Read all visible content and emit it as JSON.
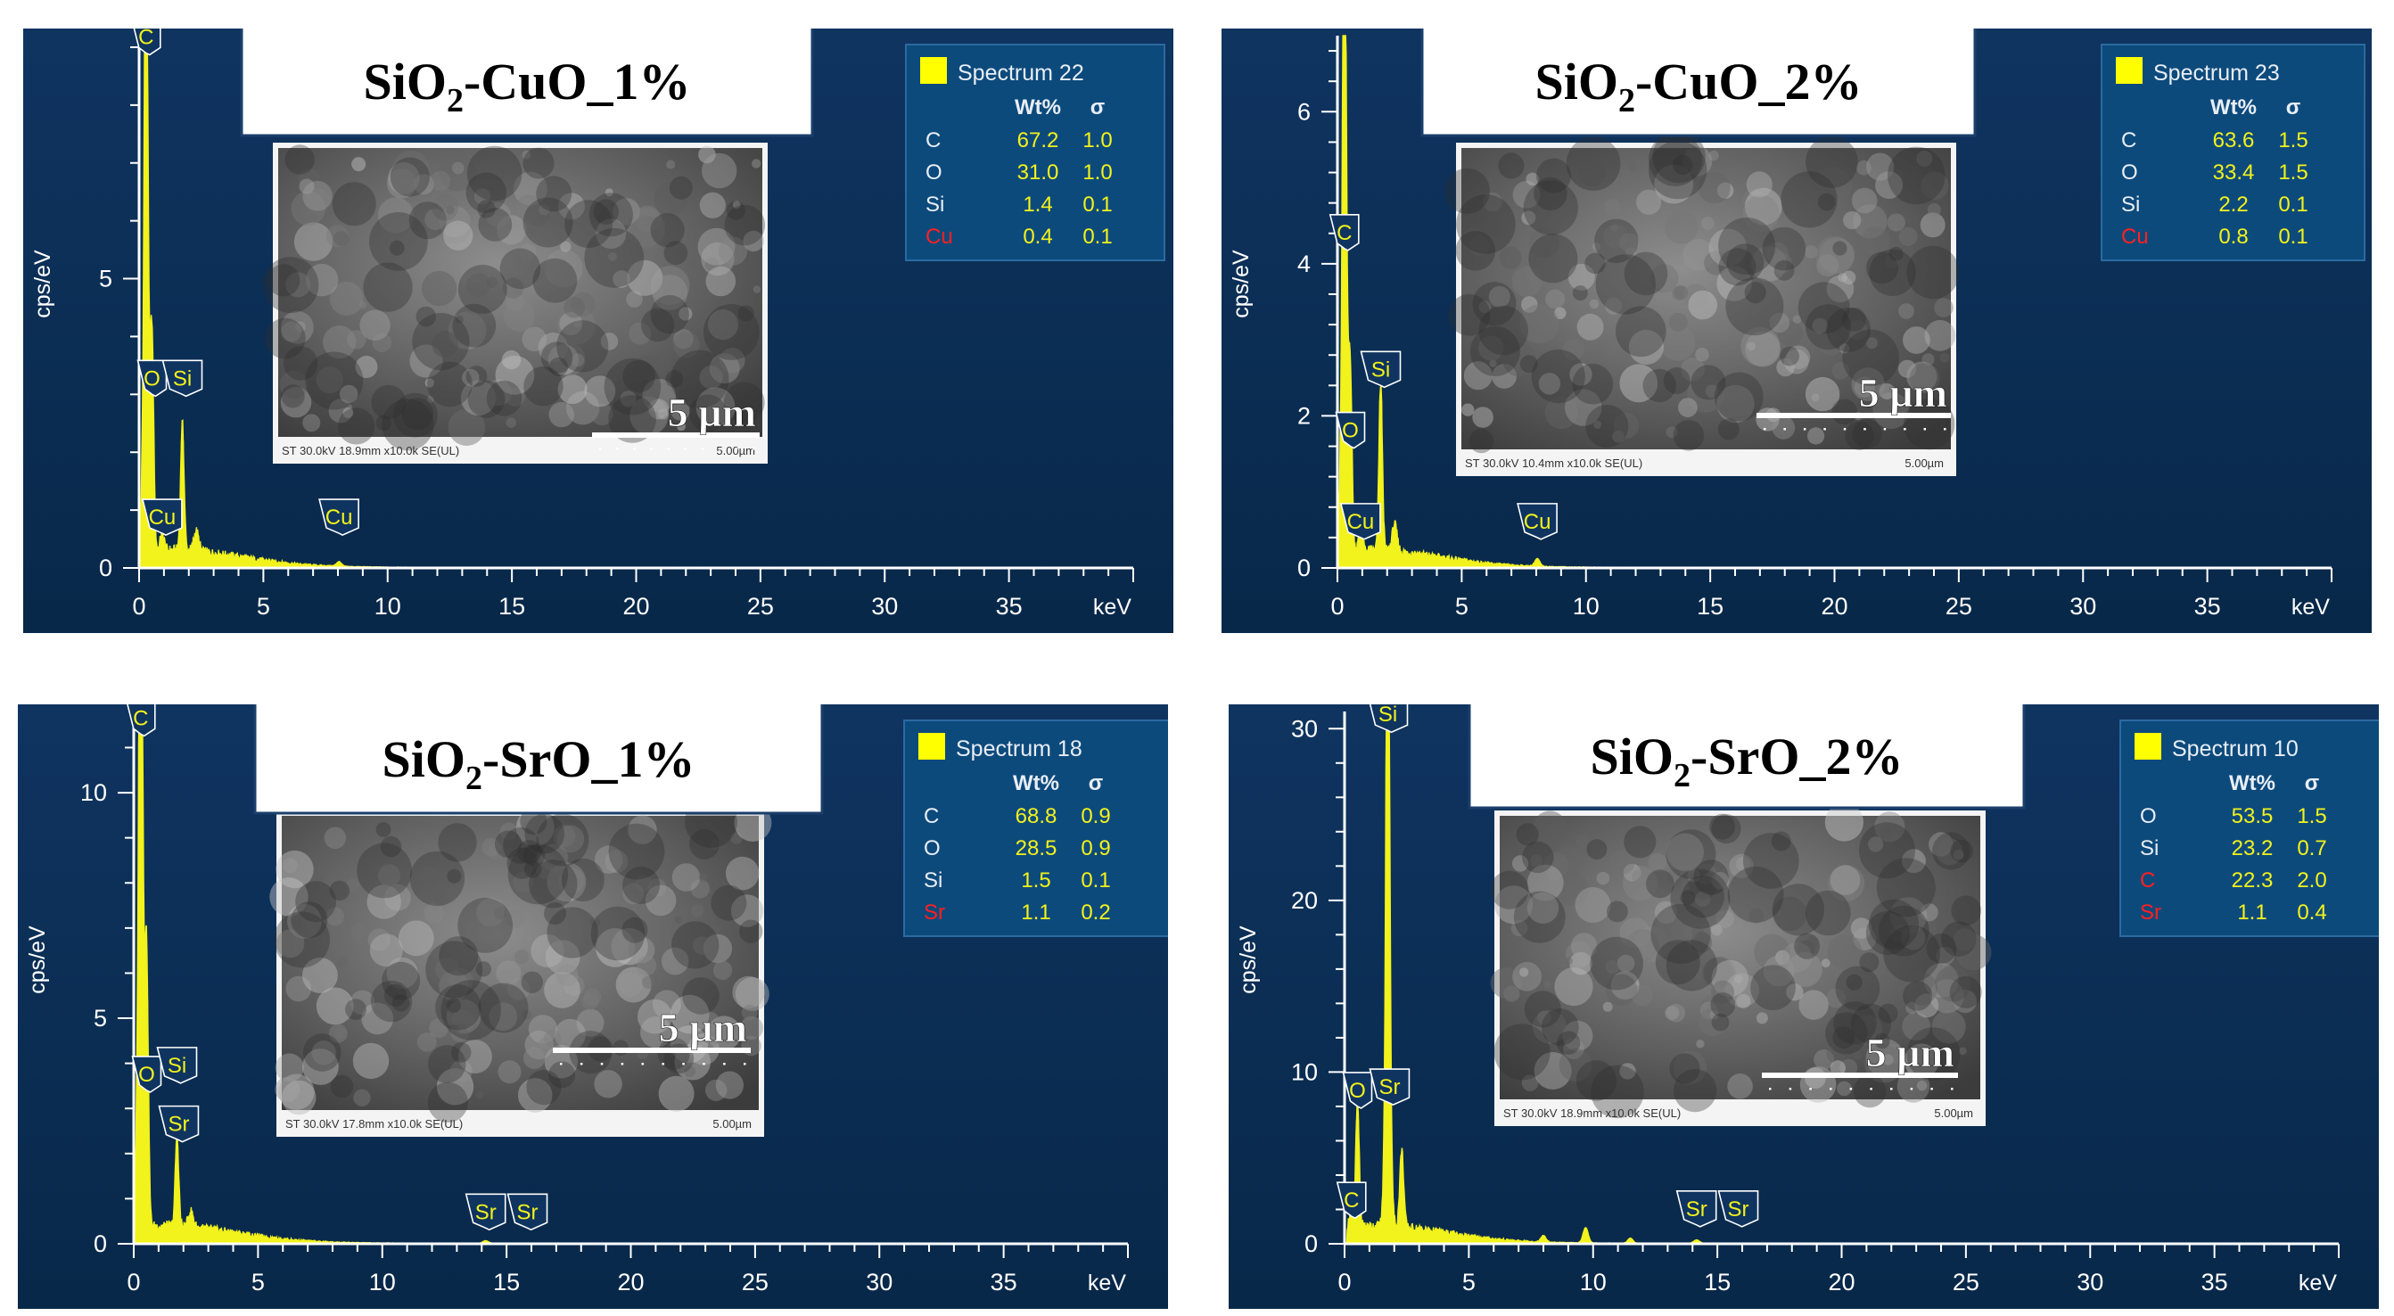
{
  "page_bg": "#ffffff",
  "colors": {
    "plot_bg_top": "#0f3460",
    "plot_bg_bottom": "#082849",
    "axis": "#ffffff",
    "spectrum": "#f2f21c",
    "marker_text": "#f2f21c",
    "legend_bg": "#0d4a7c",
    "legend_value": "#f2f21c",
    "legend_element_alt": "#ff2020",
    "legend_swatch": "#ffff00",
    "title_box_bg": "#ffffff",
    "title_box_border": "#1b3f6b"
  },
  "chart_data": [
    {
      "type": "line",
      "title": "SiO2-CuO_1%",
      "title_main": "SiO",
      "title_sub": "2",
      "title_rest": "-CuO_1%",
      "xlabel": "keV",
      "ylabel": "cps/eV",
      "xlim": [
        0,
        40
      ],
      "ylim": [
        0,
        9.2
      ],
      "xticks": [
        0,
        5,
        10,
        15,
        20,
        25,
        30,
        35
      ],
      "yticks": [
        0,
        5
      ],
      "grid": false,
      "legend": {
        "spectrum": "Spectrum 22",
        "col_wt": "Wt%",
        "col_sigma": "σ",
        "rows": [
          {
            "element": "C",
            "wt": "67.2",
            "sigma": "1.0",
            "alt": false
          },
          {
            "element": "O",
            "wt": "31.0",
            "sigma": "1.0",
            "alt": false
          },
          {
            "element": "Si",
            "wt": "1.4",
            "sigma": "0.1",
            "alt": false
          },
          {
            "element": "Cu",
            "wt": "0.4",
            "sigma": "0.1",
            "alt": true
          }
        ]
      },
      "markers": [
        {
          "label": "C",
          "x": 0.28,
          "y": 8.9
        },
        {
          "label": "O",
          "x": 0.52,
          "y": 3.0
        },
        {
          "label": "Si",
          "x": 1.74,
          "y": 3.0
        },
        {
          "label": "Cu",
          "x": 0.93,
          "y": 0.6
        },
        {
          "label": "Cu",
          "x": 8.04,
          "y": 0.6
        }
      ],
      "peaks": [
        {
          "x": 0.28,
          "y": 8.9,
          "w": 0.06
        },
        {
          "x": 0.28,
          "y": 4.2,
          "w": 0.12
        },
        {
          "x": 0.52,
          "y": 3.4,
          "w": 0.07
        },
        {
          "x": 0.93,
          "y": 0.3,
          "w": 0.08
        },
        {
          "x": 1.74,
          "y": 2.2,
          "w": 0.07
        },
        {
          "x": 2.3,
          "y": 0.35,
          "w": 0.1
        },
        {
          "x": 8.04,
          "y": 0.08,
          "w": 0.1
        }
      ],
      "inset": {
        "scale_label": "5 µm",
        "caption": "ST 30.0kV 18.9mm x10.0k SE(UL)",
        "caption_scale": "5.00µm"
      }
    },
    {
      "type": "line",
      "title": "SiO2-CuO_2%",
      "title_main": "SiO",
      "title_sub": "2",
      "title_rest": "-CuO_2%",
      "xlabel": "keV",
      "ylabel": "cps/eV",
      "xlim": [
        0,
        40
      ],
      "ylim": [
        0,
        7.0
      ],
      "xticks": [
        0,
        5,
        10,
        15,
        20,
        25,
        30,
        35
      ],
      "yticks": [
        0,
        2,
        4,
        6
      ],
      "grid": false,
      "legend": {
        "spectrum": "Spectrum 23",
        "col_wt": "Wt%",
        "col_sigma": "σ",
        "rows": [
          {
            "element": "C",
            "wt": "63.6",
            "sigma": "1.5",
            "alt": false
          },
          {
            "element": "O",
            "wt": "33.4",
            "sigma": "1.5",
            "alt": false
          },
          {
            "element": "Si",
            "wt": "2.2",
            "sigma": "0.1",
            "alt": false
          },
          {
            "element": "Cu",
            "wt": "0.8",
            "sigma": "0.1",
            "alt": true
          }
        ]
      },
      "markers": [
        {
          "label": "C",
          "x": 0.28,
          "y": 4.2
        },
        {
          "label": "O",
          "x": 0.52,
          "y": 1.6
        },
        {
          "label": "Si",
          "x": 1.74,
          "y": 2.4
        },
        {
          "label": "Cu",
          "x": 0.93,
          "y": 0.4
        },
        {
          "label": "Cu",
          "x": 8.04,
          "y": 0.4
        }
      ],
      "peaks": [
        {
          "x": 0.28,
          "y": 7.0,
          "w": 0.06
        },
        {
          "x": 0.28,
          "y": 3.7,
          "w": 0.12
        },
        {
          "x": 0.52,
          "y": 2.1,
          "w": 0.07
        },
        {
          "x": 0.93,
          "y": 0.25,
          "w": 0.08
        },
        {
          "x": 1.74,
          "y": 2.2,
          "w": 0.07
        },
        {
          "x": 2.3,
          "y": 0.35,
          "w": 0.1
        },
        {
          "x": 8.04,
          "y": 0.1,
          "w": 0.1
        }
      ],
      "inset": {
        "scale_label": "5 µm",
        "caption": "ST 30.0kV 10.4mm x10.0k SE(UL)",
        "caption_scale": "5.00µm"
      }
    },
    {
      "type": "line",
      "title": "SiO2-SrO_1%",
      "title_main": "SiO",
      "title_sub": "2",
      "title_rest": "-SrO_1%",
      "xlabel": "keV",
      "ylabel": "cps/eV",
      "xlim": [
        0,
        40
      ],
      "ylim": [
        0,
        11.8
      ],
      "xticks": [
        0,
        5,
        10,
        15,
        20,
        25,
        30,
        35
      ],
      "yticks": [
        0,
        5,
        10
      ],
      "grid": false,
      "legend": {
        "spectrum": "Spectrum 18",
        "col_wt": "Wt%",
        "col_sigma": "σ",
        "rows": [
          {
            "element": "C",
            "wt": "68.8",
            "sigma": "0.9",
            "alt": false
          },
          {
            "element": "O",
            "wt": "28.5",
            "sigma": "0.9",
            "alt": false
          },
          {
            "element": "Si",
            "wt": "1.5",
            "sigma": "0.1",
            "alt": false
          },
          {
            "element": "Sr",
            "wt": "1.1",
            "sigma": "0.2",
            "alt": true
          }
        ]
      },
      "markers": [
        {
          "label": "C",
          "x": 0.28,
          "y": 11.3
        },
        {
          "label": "O",
          "x": 0.52,
          "y": 3.4
        },
        {
          "label": "Si",
          "x": 1.74,
          "y": 3.6
        },
        {
          "label": "Sr",
          "x": 1.81,
          "y": 2.3
        },
        {
          "label": "Sr",
          "x": 14.16,
          "y": 0.35
        },
        {
          "label": "Sr",
          "x": 15.84,
          "y": 0.35
        }
      ],
      "peaks": [
        {
          "x": 0.28,
          "y": 11.4,
          "w": 0.06
        },
        {
          "x": 0.28,
          "y": 7.8,
          "w": 0.12
        },
        {
          "x": 0.52,
          "y": 5.4,
          "w": 0.07
        },
        {
          "x": 1.74,
          "y": 2.0,
          "w": 0.07
        },
        {
          "x": 2.3,
          "y": 0.35,
          "w": 0.1
        },
        {
          "x": 14.16,
          "y": 0.06,
          "w": 0.12
        }
      ],
      "inset": {
        "scale_label": "5 µm",
        "caption": "ST 30.0kV 17.8mm x10.0k SE(UL)",
        "caption_scale": "5.00µm"
      }
    },
    {
      "type": "line",
      "title": "SiO2-SrO_2%",
      "title_main": "SiO",
      "title_sub": "2",
      "title_rest": "-SrO_2%",
      "xlabel": "keV",
      "ylabel": "cps/eV",
      "xlim": [
        0,
        40
      ],
      "ylim": [
        0,
        31
      ],
      "xticks": [
        0,
        5,
        10,
        15,
        20,
        25,
        30,
        35
      ],
      "yticks": [
        0,
        10,
        20,
        30
      ],
      "grid": false,
      "legend": {
        "spectrum": "Spectrum 10",
        "col_wt": "Wt%",
        "col_sigma": "σ",
        "rows": [
          {
            "element": "O",
            "wt": "53.5",
            "sigma": "1.5",
            "alt": false
          },
          {
            "element": "Si",
            "wt": "23.2",
            "sigma": "0.7",
            "alt": false
          },
          {
            "element": "C",
            "wt": "22.3",
            "sigma": "2.0",
            "alt": true
          },
          {
            "element": "Sr",
            "wt": "1.1",
            "sigma": "0.4",
            "alt": true
          }
        ]
      },
      "markers": [
        {
          "label": "Si",
          "x": 1.74,
          "y": 29.9
        },
        {
          "label": "O",
          "x": 0.52,
          "y": 8.0
        },
        {
          "label": "Sr",
          "x": 1.81,
          "y": 8.2
        },
        {
          "label": "C",
          "x": 0.28,
          "y": 1.6
        },
        {
          "label": "Sr",
          "x": 14.16,
          "y": 1.1
        },
        {
          "label": "Sr",
          "x": 15.84,
          "y": 1.1
        }
      ],
      "peaks": [
        {
          "x": 1.74,
          "y": 30.5,
          "w": 0.06
        },
        {
          "x": 1.74,
          "y": 17.0,
          "w": 0.1
        },
        {
          "x": 0.52,
          "y": 7.2,
          "w": 0.07
        },
        {
          "x": 0.28,
          "y": 1.2,
          "w": 0.07
        },
        {
          "x": 2.3,
          "y": 4.5,
          "w": 0.08
        },
        {
          "x": 8.0,
          "y": 0.4,
          "w": 0.1
        },
        {
          "x": 9.7,
          "y": 0.9,
          "w": 0.1
        },
        {
          "x": 11.5,
          "y": 0.3,
          "w": 0.1
        },
        {
          "x": 14.16,
          "y": 0.2,
          "w": 0.12
        }
      ],
      "inset": {
        "scale_label": "5 µm",
        "caption": "ST 30.0kV 18.9mm x10.0k SE(UL)",
        "caption_scale": "5.00µm"
      }
    }
  ]
}
